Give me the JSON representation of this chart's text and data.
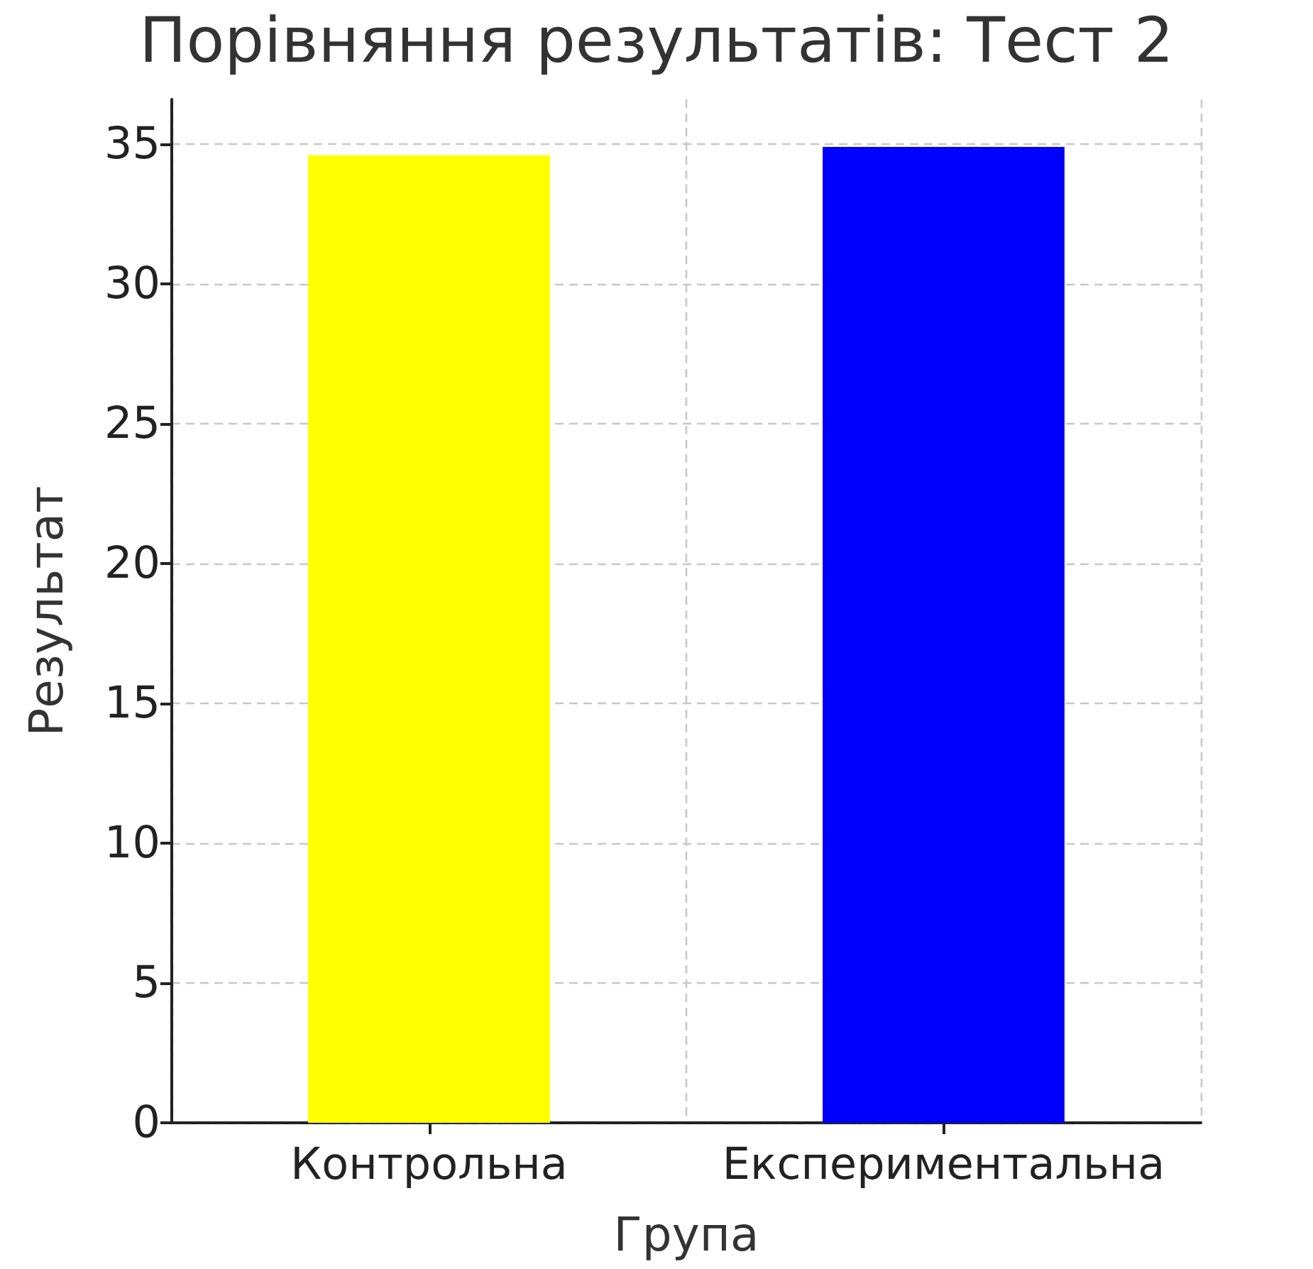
{
  "chart_data": {
    "type": "bar",
    "title": "Порівняння результатів: Тест 2",
    "xlabel": "Група",
    "ylabel": "Результат",
    "categories": [
      "Контрольна",
      "Експериментальна"
    ],
    "values": [
      34.6,
      34.9
    ],
    "colors": [
      "#ffff00",
      "#0000ff"
    ],
    "ylim": [
      0,
      36.6
    ],
    "yticks": [
      0,
      5,
      10,
      15,
      20,
      25,
      30,
      35
    ],
    "grid": true
  }
}
